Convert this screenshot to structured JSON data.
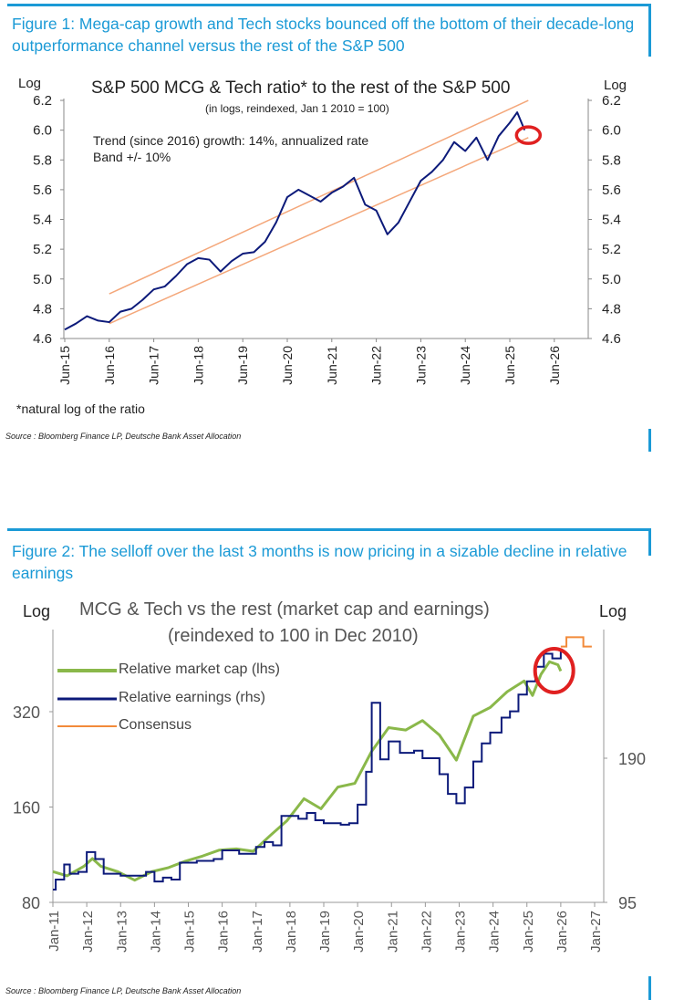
{
  "figure1": {
    "heading": "Figure 1: Mega-cap growth and Tech stocks bounced off the bottom of their decade-long outperformance channel versus the rest of the S&P 500",
    "source": "Source : Bloomberg Finance LP, Deutsche Bank Asset Allocation",
    "footnote": "*natural log of the ratio"
  },
  "figure2": {
    "heading": "Figure 2: The selloff over the last 3 months is now pricing in a sizable decline in relative earnings",
    "source": "Source : Bloomberg Finance LP, Deutsche Bank Asset Allocation"
  },
  "colors": {
    "accent": "#1b9ad6",
    "navy": "#0c1a7a",
    "orange": "#f4a77a",
    "green": "#8ab84a",
    "consensus": "#f28a3a",
    "highlight": "#e02020"
  },
  "chart_data": [
    {
      "type": "line",
      "title": "S&P 500 MCG & Tech ratio* to the rest of the S&P 500",
      "subtitle": "(in logs, reindexed, Jan 1 2010 = 100)",
      "annotation": [
        "Trend (since 2016) growth: 14%, annualized rate",
        "Band +/- 10%"
      ],
      "ylabel_left": "Log",
      "ylabel_right": "Log",
      "ylim": [
        4.6,
        6.2
      ],
      "yticks": [
        "4.6",
        "4.8",
        "5.0",
        "5.2",
        "5.4",
        "5.6",
        "5.8",
        "6.0",
        "6.2"
      ],
      "xticks": [
        "Jun-15",
        "Jun-16",
        "Jun-17",
        "Jun-18",
        "Jun-19",
        "Jun-20",
        "Jun-21",
        "Jun-22",
        "Jun-23",
        "Jun-24",
        "Jun-25",
        "Jun-26"
      ],
      "grid": false,
      "series": [
        {
          "x": [
            "2015-06",
            "2015-09",
            "2015-12",
            "2016-03",
            "2016-06",
            "2016-09",
            "2016-12",
            "2017-03",
            "2017-06",
            "2017-09",
            "2017-12",
            "2018-03",
            "2018-06",
            "2018-09",
            "2018-12",
            "2019-03",
            "2019-06",
            "2019-09",
            "2019-12",
            "2020-03",
            "2020-06",
            "2020-09",
            "2020-12",
            "2021-03",
            "2021-06",
            "2021-09",
            "2021-12",
            "2022-03",
            "2022-06",
            "2022-09",
            "2022-12",
            "2023-03",
            "2023-06",
            "2023-09",
            "2023-12",
            "2024-03",
            "2024-06",
            "2024-09",
            "2024-12",
            "2025-03",
            "2025-06",
            "2025-08",
            "2025-10"
          ],
          "y": [
            4.66,
            4.7,
            4.75,
            4.72,
            4.71,
            4.78,
            4.8,
            4.86,
            4.93,
            4.95,
            5.02,
            5.1,
            5.14,
            5.13,
            5.05,
            5.12,
            5.17,
            5.18,
            5.25,
            5.38,
            5.55,
            5.6,
            5.56,
            5.52,
            5.58,
            5.62,
            5.68,
            5.5,
            5.46,
            5.3,
            5.38,
            5.52,
            5.66,
            5.72,
            5.8,
            5.92,
            5.86,
            5.95,
            5.8,
            5.96,
            6.05,
            6.12,
            6.0
          ]
        },
        {
          "x": [
            "2016-06",
            "2025-11"
          ],
          "y": [
            4.9,
            6.2
          ]
        },
        {
          "x": [
            "2016-06",
            "2025-11"
          ],
          "y": [
            4.7,
            5.95
          ]
        }
      ],
      "highlight": {
        "x": "2025-11",
        "y": 5.96
      }
    },
    {
      "type": "line",
      "title": "MCG & Tech vs the rest (market cap and earnings)",
      "subtitle": "(reindexed to 100 in Dec 2010)",
      "ylabel_left": "Log",
      "ylabel_right": "Log",
      "yscale": "log",
      "ylim_left": [
        80,
        570
      ],
      "yticks_left": [
        "80",
        "160",
        "320"
      ],
      "ylim_right": [
        95,
        360
      ],
      "yticks_right": [
        "95",
        "190"
      ],
      "xticks": [
        "Jan-11",
        "Jan-12",
        "Jan-13",
        "Jan-14",
        "Jan-15",
        "Jan-16",
        "Jan-17",
        "Jan-18",
        "Jan-19",
        "Jan-20",
        "Jan-21",
        "Jan-22",
        "Jan-23",
        "Jan-24",
        "Jan-25",
        "Jan-26",
        "Jan-27"
      ],
      "legend": "top-left",
      "grid": false,
      "series": [
        {
          "name": "Relative market cap (lhs)",
          "axis": "left",
          "x": [
            "2011-01",
            "2011-06",
            "2011-12",
            "2012-03",
            "2012-06",
            "2012-12",
            "2013-06",
            "2013-12",
            "2014-06",
            "2014-12",
            "2015-06",
            "2015-12",
            "2016-06",
            "2016-12",
            "2017-06",
            "2017-12",
            "2018-06",
            "2018-12",
            "2019-06",
            "2019-12",
            "2020-06",
            "2020-12",
            "2021-06",
            "2021-12",
            "2022-06",
            "2022-12",
            "2023-06",
            "2023-12",
            "2024-06",
            "2024-12",
            "2025-03",
            "2025-06",
            "2025-09",
            "2025-12",
            "2026-01"
          ],
          "y": [
            100,
            97,
            104,
            110,
            104,
            100,
            94,
            100,
            103,
            108,
            112,
            117,
            118,
            116,
            130,
            145,
            170,
            158,
            185,
            190,
            240,
            285,
            280,
            300,
            270,
            225,
            310,
            330,
            370,
            400,
            360,
            420,
            460,
            450,
            430
          ]
        },
        {
          "name": "Relative earnings (rhs)",
          "axis": "right",
          "step": true,
          "x": [
            "2011-01",
            "2011-02",
            "2011-05",
            "2011-07",
            "2011-10",
            "2012-01",
            "2012-04",
            "2012-07",
            "2013-01",
            "2013-07",
            "2013-10",
            "2014-01",
            "2014-04",
            "2014-07",
            "2014-10",
            "2015-04",
            "2015-10",
            "2016-01",
            "2016-07",
            "2017-01",
            "2017-04",
            "2017-07",
            "2017-10",
            "2018-04",
            "2018-07",
            "2018-10",
            "2019-01",
            "2019-07",
            "2019-10",
            "2020-01",
            "2020-04",
            "2020-06",
            "2020-09",
            "2020-12",
            "2021-04",
            "2021-09",
            "2021-12",
            "2022-06",
            "2022-09",
            "2022-12",
            "2023-03",
            "2023-06",
            "2023-09",
            "2023-12",
            "2024-04",
            "2024-07",
            "2024-10",
            "2025-01",
            "2025-04",
            "2025-07",
            "2025-10",
            "2026-01"
          ],
          "y": [
            101,
            106,
            114,
            109,
            110,
            121,
            117,
            109,
            108,
            108,
            110,
            105,
            107,
            106,
            115,
            116,
            117,
            122,
            120,
            124,
            127,
            125,
            144,
            142,
            146,
            141,
            139,
            138,
            139,
            152,
            178,
            248,
            189,
            206,
            195,
            197,
            190,
            176,
            160,
            153,
            165,
            187,
            204,
            215,
            231,
            238,
            258,
            275,
            295,
            314,
            307,
            320
          ]
        },
        {
          "name": "Consensus",
          "axis": "right",
          "step": true,
          "x": [
            "2026-01",
            "2026-03",
            "2026-08",
            "2026-09",
            "2026-12"
          ],
          "y": [
            325,
            340,
            340,
            325,
            325
          ]
        }
      ],
      "highlight": {
        "x": "2025-11",
        "y_left": 440
      }
    }
  ]
}
